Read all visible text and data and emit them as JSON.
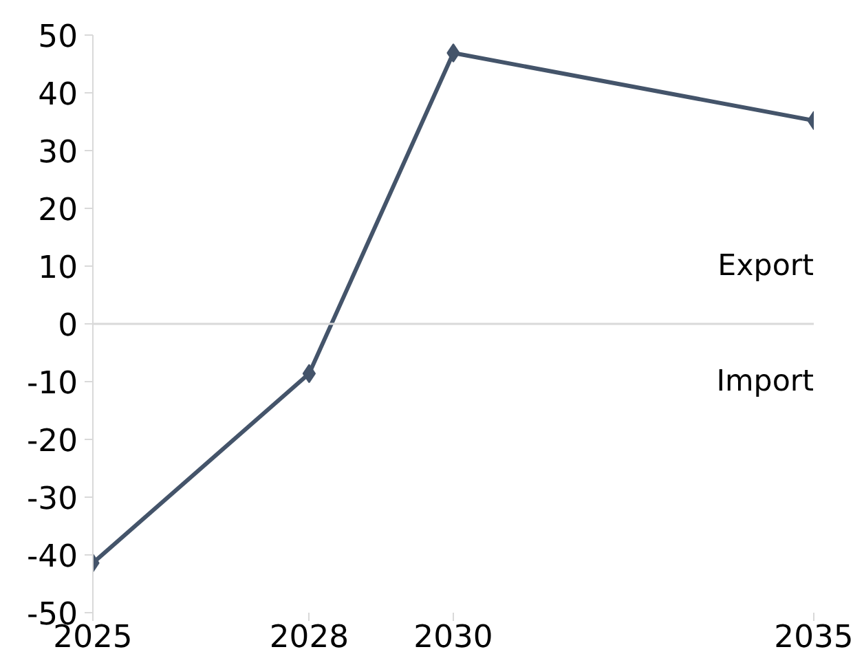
{
  "chart_data": {
    "type": "line",
    "x": [
      2025,
      2028,
      2030,
      2035
    ],
    "series": [
      {
        "color": "#44546a",
        "values": [
          -41.4,
          -8.6,
          46.9,
          35.2
        ]
      }
    ],
    "xlim": [
      2025,
      2035
    ],
    "xticks": [
      2025,
      2028,
      2030,
      2035
    ],
    "ylim": [
      -50,
      50
    ],
    "yticks": [
      -50,
      -40,
      -30,
      -20,
      -10,
      0,
      10,
      20,
      30,
      40,
      50
    ],
    "ref_lines": [
      {
        "axis": "y",
        "value": 0,
        "color": "#d9d9d9"
      }
    ],
    "annotations": [
      "Export",
      "Import"
    ],
    "marker": "diamond",
    "line_style": "solid",
    "grid": false
  }
}
